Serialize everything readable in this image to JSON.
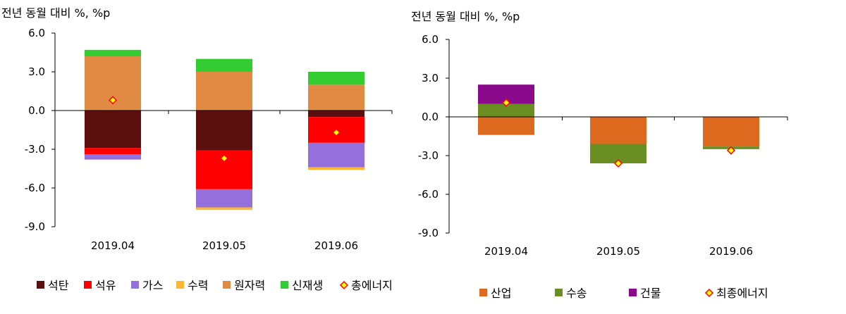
{
  "chart_data": [
    {
      "type": "bar",
      "stacked": true,
      "ylabel": "전년 동월 대비 %, %p",
      "ylim": [
        -9,
        6
      ],
      "yticks": [
        "6.0",
        "3.0",
        "0.0",
        "-3.0",
        "-6.0",
        "-9.0"
      ],
      "categories": [
        "2019.04",
        "2019.05",
        "2019.06"
      ],
      "series": [
        {
          "name": "석탄",
          "color": "#5c0f0f",
          "values": [
            -2.9,
            -3.1,
            -0.5
          ]
        },
        {
          "name": "석유",
          "color": "#ff0000",
          "values": [
            -0.5,
            -3.0,
            -2.0
          ]
        },
        {
          "name": "가스",
          "color": "#9370db",
          "values": [
            -0.4,
            -1.4,
            -1.9
          ]
        },
        {
          "name": "수력",
          "color": "#ffb833",
          "values": [
            0.0,
            -0.2,
            -0.2
          ]
        },
        {
          "name": "원자력",
          "color": "#e08a44",
          "values": [
            4.2,
            3.0,
            2.0
          ]
        },
        {
          "name": "신재생",
          "color": "#33cc33",
          "values": [
            0.5,
            1.0,
            1.0
          ]
        }
      ],
      "total_marker": {
        "name": "총에너지",
        "values": [
          0.8,
          -3.7,
          -1.7
        ]
      },
      "legend_position": "bottom"
    },
    {
      "type": "bar",
      "stacked": true,
      "ylabel": "전년 동월 대비 %, %p",
      "ylim": [
        -9,
        6
      ],
      "yticks": [
        "6.0",
        "3.0",
        "0.0",
        "-3.0",
        "-6.0",
        "-9.0"
      ],
      "categories": [
        "2019.04",
        "2019.05",
        "2019.06"
      ],
      "series": [
        {
          "name": "산업",
          "color": "#dd6a1f",
          "values": [
            -1.4,
            -2.1,
            -2.3
          ]
        },
        {
          "name": "수송",
          "color": "#6b8e23",
          "values": [
            1.0,
            -1.5,
            -0.2
          ]
        },
        {
          "name": "건물",
          "color": "#8b0a8b",
          "values": [
            1.5,
            0.0,
            0.0
          ]
        }
      ],
      "total_marker": {
        "name": "최종에너지",
        "values": [
          1.1,
          -3.6,
          -2.6
        ]
      },
      "legend_position": "bottom"
    }
  ]
}
